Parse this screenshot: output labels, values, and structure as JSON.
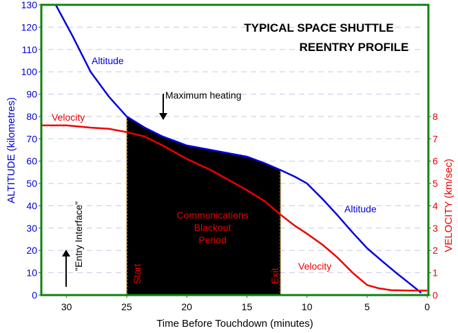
{
  "chart_data": {
    "type": "line",
    "title": [
      "TYPICAL SPACE SHUTTLE",
      "REENTRY PROFILE"
    ],
    "xlabel": "Time Before Touchdown (minutes)",
    "ylabel_left": "ALTITUDE  (kilometres)",
    "ylabel_right": "VELOCITY  (km/sec)",
    "xlim": [
      32.1,
      -0.1
    ],
    "ylim_left": [
      0,
      130
    ],
    "ylim_right": [
      0,
      13
    ],
    "x_ticks": [
      30,
      25,
      20,
      15,
      10,
      5,
      0
    ],
    "y_ticks_left": [
      0,
      10,
      20,
      30,
      40,
      50,
      60,
      70,
      80,
      90,
      100,
      110,
      120,
      130
    ],
    "y_ticks_right": [
      0,
      1,
      2,
      3,
      4,
      5,
      6,
      7,
      8
    ],
    "grid": "dashed horizontal",
    "series": [
      {
        "name": "Altitude",
        "axis": "left",
        "color": "#0000dd",
        "x": [
          30.9,
          29.5,
          28,
          26.5,
          25,
          23.5,
          22,
          20,
          18,
          17,
          15,
          13.5,
          12.2,
          11,
          10,
          8.7,
          7.5,
          6.2,
          5,
          3.7,
          2.5,
          1.3,
          0.5
        ],
        "y": [
          130,
          116,
          100,
          89,
          80,
          75,
          71,
          67,
          65,
          64,
          62,
          59,
          56,
          53,
          50,
          43,
          36,
          28,
          21,
          15,
          9.6,
          4.5,
          1
        ]
      },
      {
        "name": "Velocity",
        "axis": "right",
        "color": "#ee0000",
        "x": [
          32.1,
          30,
          28,
          26.5,
          25,
          23.5,
          22,
          20,
          18,
          17,
          15,
          13.5,
          12.2,
          11,
          10,
          8.7,
          7.5,
          6.2,
          5,
          4,
          3,
          1.5,
          0
        ],
        "y": [
          7.6,
          7.6,
          7.5,
          7.45,
          7.3,
          7.1,
          6.7,
          6.1,
          5.6,
          5.3,
          4.7,
          4.2,
          3.6,
          3.1,
          2.75,
          2.25,
          1.7,
          1.0,
          0.45,
          0.3,
          0.22,
          0.2,
          0.2
        ]
      }
    ],
    "blackout": {
      "start": 25,
      "end": 12.2,
      "label": [
        "Communications",
        "Blackout",
        "Period"
      ],
      "start_label": "Start",
      "end_label": "Exit"
    },
    "annotations": [
      {
        "text": "Altitude",
        "at_x": 26.5,
        "at_y": 102,
        "color": "#0000dd"
      },
      {
        "text": "Altitude",
        "at_x": 8.5,
        "at_y": 38,
        "color": "#0000dd"
      },
      {
        "text": "Velocity",
        "at_x": 32,
        "at_y": 78,
        "color": "#ee0000"
      },
      {
        "text": "Velocity",
        "at_x": 10.3,
        "at_y": 12,
        "color": "#ee0000"
      },
      {
        "text": "Maximum heating",
        "at_x": 22,
        "at_y": 90,
        "color": "#000000"
      },
      {
        "text": "\"Entry Interface\"",
        "at_x": 30,
        "at_y": 2,
        "color": "#000000"
      }
    ]
  }
}
